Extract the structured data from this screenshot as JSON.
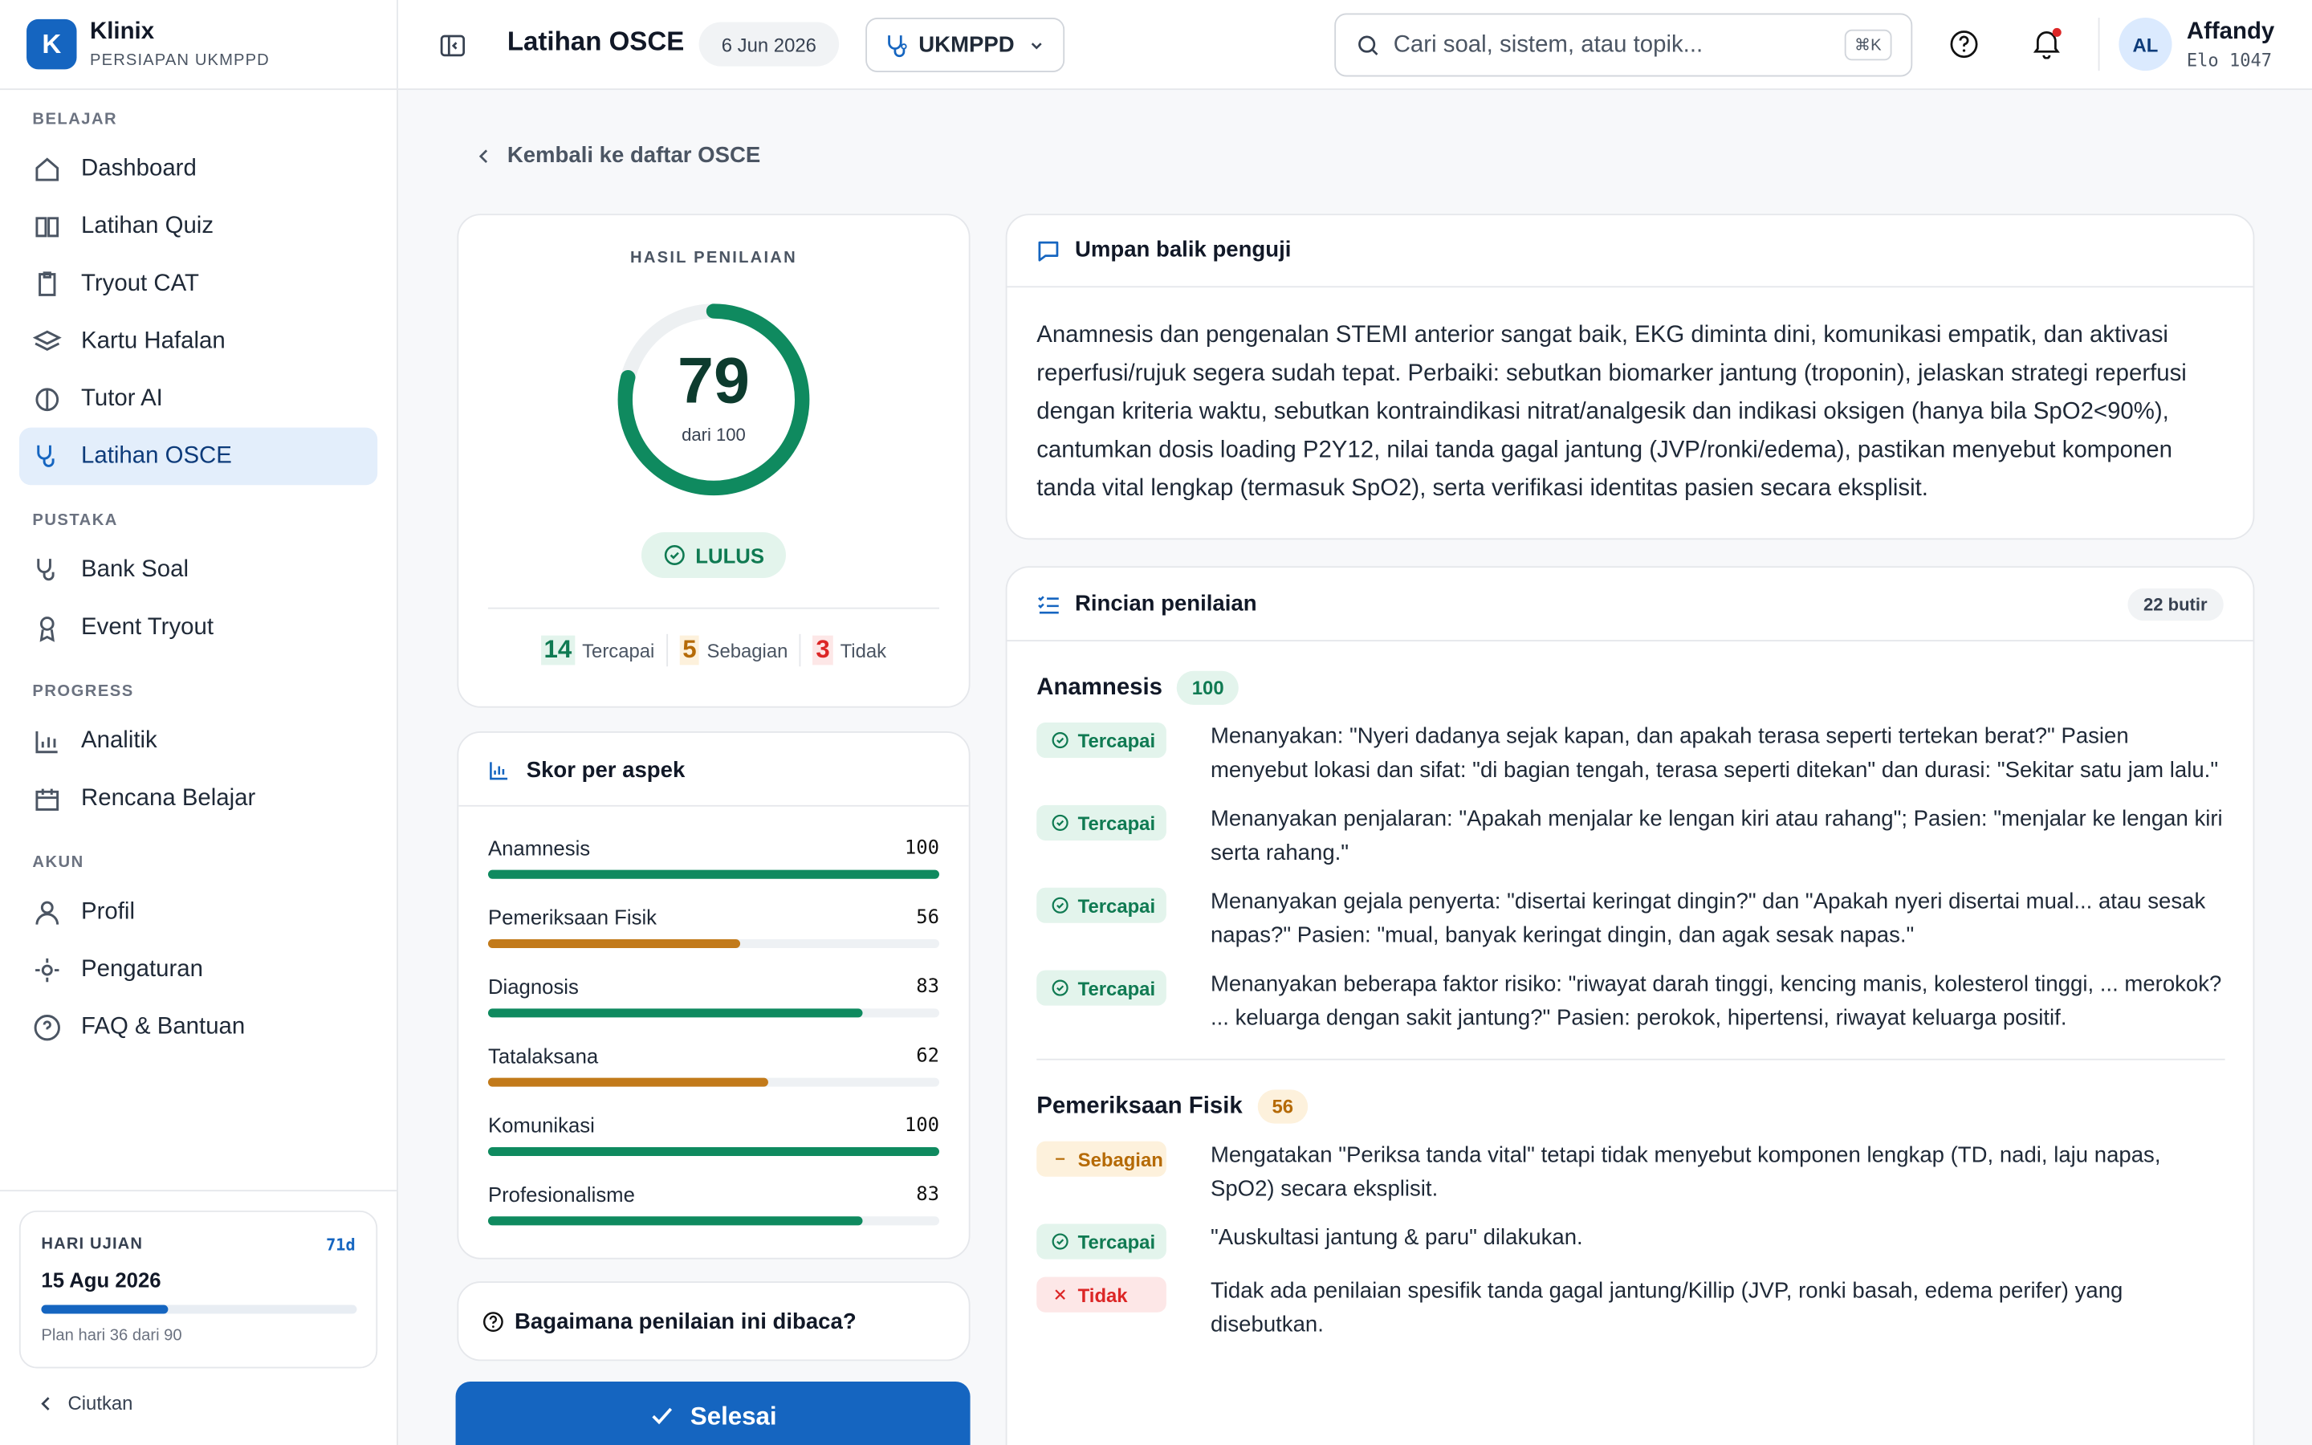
{
  "app": {
    "logo_letter": "K",
    "name": "Klinix",
    "subtitle": "PERSIAPAN UKMPPD"
  },
  "sidebar": {
    "sections": [
      {
        "title": "BELAJAR",
        "items": [
          {
            "label": "Dashboard"
          },
          {
            "label": "Latihan Quiz"
          },
          {
            "label": "Tryout CAT"
          },
          {
            "label": "Kartu Hafalan"
          },
          {
            "label": "Tutor AI"
          },
          {
            "label": "Latihan OSCE",
            "active": true
          }
        ]
      },
      {
        "title": "PUSTAKA",
        "items": [
          {
            "label": "Bank Soal"
          },
          {
            "label": "Event Tryout"
          }
        ]
      },
      {
        "title": "PROGRESS",
        "items": [
          {
            "label": "Analitik"
          },
          {
            "label": "Rencana Belajar"
          }
        ]
      },
      {
        "title": "AKUN",
        "items": [
          {
            "label": "Profil"
          },
          {
            "label": "Pengaturan"
          },
          {
            "label": "FAQ & Bantuan"
          }
        ]
      }
    ],
    "exam_card": {
      "label": "HARI UJIAN",
      "days_left": "71d",
      "date": "15 Agu 2026",
      "progress": 40,
      "plan": "Plan hari 36 dari 90"
    },
    "collapse": "Ciutkan"
  },
  "header": {
    "title": "Latihan OSCE",
    "date": "6 Jun 2026",
    "exam_select": "UKMPPD",
    "search_placeholder": "Cari soal, sistem, atau topik...",
    "shortcut": "⌘K",
    "user": {
      "initials": "AL",
      "name": "Affandy",
      "elo": "Elo 1047"
    }
  },
  "back": "Kembali ke daftar OSCE",
  "result": {
    "label": "HASIL PENILAIAN",
    "score": 79,
    "max": 100,
    "max_label": "dari 100",
    "status": "LULUS",
    "counts": [
      {
        "value": 14,
        "label": "Tercapai",
        "tone": "success"
      },
      {
        "value": 5,
        "label": "Sebagian",
        "tone": "warning"
      },
      {
        "value": 3,
        "label": "Tidak",
        "tone": "danger"
      }
    ]
  },
  "aspects": {
    "title": "Skor per aspek",
    "max": 100,
    "items": [
      {
        "name": "Anamnesis",
        "score": 100,
        "tone": "success"
      },
      {
        "name": "Pemeriksaan Fisik",
        "score": 56,
        "tone": "warning"
      },
      {
        "name": "Diagnosis",
        "score": 83,
        "tone": "success"
      },
      {
        "name": "Tatalaksana",
        "score": 62,
        "tone": "warning"
      },
      {
        "name": "Komunikasi",
        "score": 100,
        "tone": "success"
      },
      {
        "name": "Profesionalisme",
        "score": 83,
        "tone": "success"
      }
    ]
  },
  "help": "Bagaimana penilaian ini dibaca?",
  "done": "Selesai",
  "feedback": {
    "title": "Umpan balik penguji",
    "text": "Anamnesis dan pengenalan STEMI anterior sangat baik, EKG diminta dini, komunikasi empatik, dan aktivasi reperfusi/rujuk segera sudah tepat. Perbaiki: sebutkan biomarker jantung (troponin), jelaskan strategi reperfusi dengan kriteria waktu, sebutkan kontraindikasi nitrat/analgesik dan indikasi oksigen (hanya bila SpO2<90%), cantumkan dosis loading P2Y12, nilai tanda gagal jantung (JVP/ronki/edema), pastikan menyebut komponen tanda vital lengkap (termasuk SpO2), serta verifikasi identitas pasien secara eksplisit."
  },
  "details": {
    "title": "Rincian penilaian",
    "count": "22 butir",
    "groups": [
      {
        "name": "Anamnesis",
        "score": 100,
        "tone": "success",
        "items": [
          {
            "status": "Tercapai",
            "tone": "success",
            "text": "Menanyakan: \"Nyeri dadanya sejak kapan, dan apakah terasa seperti tertekan berat?\" Pasien menyebut lokasi dan sifat: \"di bagian tengah, terasa seperti ditekan\" dan durasi: \"Sekitar satu jam lalu.\""
          },
          {
            "status": "Tercapai",
            "tone": "success",
            "text": "Menanyakan penjalaran: \"Apakah menjalar ke lengan kiri atau rahang\"; Pasien: \"menjalar ke lengan kiri serta rahang.\""
          },
          {
            "status": "Tercapai",
            "tone": "success",
            "text": "Menanyakan gejala penyerta: \"disertai keringat dingin?\" dan \"Apakah nyeri disertai mual... atau sesak napas?\" Pasien: \"mual, banyak keringat dingin, dan agak sesak napas.\""
          },
          {
            "status": "Tercapai",
            "tone": "success",
            "text": "Menanyakan beberapa faktor risiko: \"riwayat darah tinggi, kencing manis, kolesterol tinggi, ... merokok? ... keluarga dengan sakit jantung?\" Pasien: perokok, hipertensi, riwayat keluarga positif."
          }
        ]
      },
      {
        "name": "Pemeriksaan Fisik",
        "score": 56,
        "tone": "warning",
        "items": [
          {
            "status": "Sebagian",
            "tone": "warning",
            "text": "Mengatakan \"Periksa tanda vital\" tetapi tidak menyebut komponen lengkap (TD, nadi, laju napas, SpO2) secara eksplisit."
          },
          {
            "status": "Tercapai",
            "tone": "success",
            "text": "\"Auskultasi jantung & paru\" dilakukan."
          },
          {
            "status": "Tidak",
            "tone": "danger",
            "text": "Tidak ada penilaian spesifik tanda gagal jantung/Killip (JVP, ronki basah, edema perifer) yang disebutkan."
          }
        ]
      }
    ]
  }
}
